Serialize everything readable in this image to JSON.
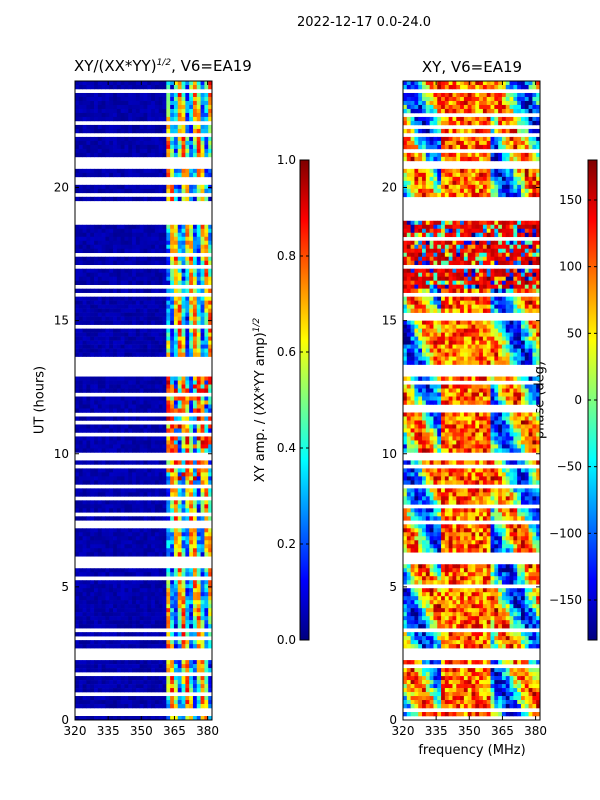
{
  "figure": {
    "suptitle": "2022-12-17 0.0-24.0",
    "xlabel": "frequency (MHz)",
    "colormap": [
      "#00007f",
      "#0000ff",
      "#007fff",
      "#00ffff",
      "#7fff7f",
      "#ffff00",
      "#ff7f00",
      "#ff0000",
      "#7f0000"
    ]
  },
  "chart_data": [
    {
      "type": "heatmap",
      "title": "XY/(XX*YY)^1/2, V6=EA19",
      "xlabel": "",
      "ylabel": "UT (hours)",
      "xlim": [
        320,
        382
      ],
      "ylim": [
        0,
        24
      ],
      "xticks": [
        320,
        335,
        350,
        365,
        380
      ],
      "yticks": [
        0,
        5,
        10,
        15,
        20
      ],
      "colorbar": {
        "label": "XY amp. / (XX*YY amp)^1/2",
        "range": [
          0.0,
          1.0
        ],
        "ticks": [
          "0.0",
          "0.2",
          "0.4",
          "0.6",
          "0.8",
          "1.0"
        ]
      },
      "description": "normalized XY amplitude, mostly near 0 below 362 MHz, 0.3-0.9 in 362-382 MHz band",
      "flagged_hours": [
        [
          0.3,
          0.5
        ],
        [
          2.3,
          2.7
        ],
        [
          3.3,
          3.5
        ],
        [
          5.9,
          6.1
        ],
        [
          7.3,
          7.5
        ],
        [
          9.8,
          10.0
        ],
        [
          12.9,
          13.3
        ],
        [
          15.9,
          16.1
        ],
        [
          18.9,
          19.3
        ],
        [
          20.7,
          21.0
        ]
      ]
    },
    {
      "type": "heatmap",
      "title": "XY, V6=EA19",
      "xlabel": "frequency (MHz)",
      "ylabel": "",
      "xlim": [
        320,
        382
      ],
      "ylim": [
        0,
        24
      ],
      "xticks": [
        320,
        335,
        350,
        365,
        380
      ],
      "yticks": [
        0,
        5,
        10,
        15,
        20
      ],
      "colorbar": {
        "label": "phase (deg)",
        "range": [
          -180,
          180
        ],
        "ticks": [
          "−150",
          "−100",
          "−50",
          "0",
          "50",
          "100",
          "150"
        ]
      },
      "description": "XY phase in degrees, noisy -180..180 with red (~150) dominated band near 340-360 MHz",
      "flagged_hours": [
        [
          0.3,
          0.5
        ],
        [
          2.3,
          2.7
        ],
        [
          3.3,
          3.5
        ],
        [
          5.9,
          6.1
        ],
        [
          7.3,
          7.5
        ],
        [
          9.8,
          10.0
        ],
        [
          12.9,
          13.3
        ],
        [
          15.9,
          16.1
        ],
        [
          18.9,
          19.3
        ],
        [
          20.7,
          21.0
        ]
      ]
    }
  ]
}
